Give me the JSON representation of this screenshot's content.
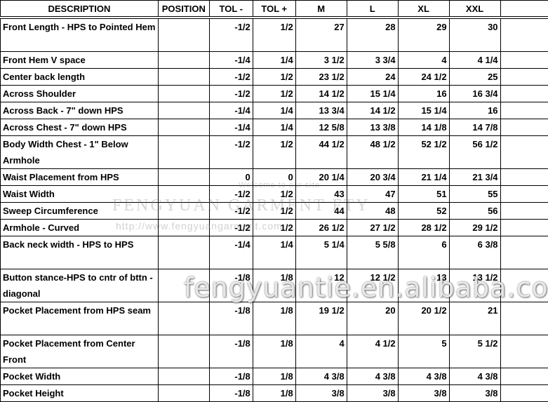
{
  "headers": [
    "DESCRIPTION",
    "POSITION",
    "TOL -",
    "TOL +",
    "M",
    "L",
    "XL",
    "XXL",
    ""
  ],
  "rows": [
    {
      "desc": "Front Length - HPS to Pointed Hem",
      "pos": "",
      "tol_minus": "-1/2",
      "tol_plus": "1/2",
      "m": "27",
      "l": "28",
      "xl": "29",
      "xxl": "30",
      "tall": true
    },
    {
      "desc": "Front Hem V space",
      "pos": "",
      "tol_minus": "-1/4",
      "tol_plus": "1/4",
      "m": "3 1/2",
      "l": "3 3/4",
      "xl": "4",
      "xxl": "4 1/4",
      "tall": false
    },
    {
      "desc": "Center back length",
      "pos": "",
      "tol_minus": "-1/2",
      "tol_plus": "1/2",
      "m": "23 1/2",
      "l": "24",
      "xl": "24 1/2",
      "xxl": "25",
      "tall": false
    },
    {
      "desc": "Across Shoulder",
      "pos": "",
      "tol_minus": "-1/2",
      "tol_plus": "1/2",
      "m": "14 1/2",
      "l": "15 1/4",
      "xl": "16",
      "xxl": "16 3/4",
      "tall": false
    },
    {
      "desc": "Across Back - 7\" down HPS",
      "pos": "",
      "tol_minus": "-1/4",
      "tol_plus": "1/4",
      "m": "13 3/4",
      "l": "14 1/2",
      "xl": "15 1/4",
      "xxl": "16",
      "tall": false
    },
    {
      "desc": "Across Chest - 7\" down HPS",
      "pos": "",
      "tol_minus": "-1/4",
      "tol_plus": "1/4",
      "m": "12 5/8",
      "l": "13 3/8",
      "xl": "14 1/8",
      "xxl": "14 7/8",
      "tall": false
    },
    {
      "desc": "Body Width Chest - 1\" Below Armhole",
      "pos": "",
      "tol_minus": "-1/2",
      "tol_plus": "1/2",
      "m": "44 1/2",
      "l": "48 1/2",
      "xl": "52 1/2",
      "xxl": "56 1/2",
      "tall": true
    },
    {
      "desc": "Waist Placement from HPS",
      "pos": "",
      "tol_minus": "0",
      "tol_plus": "0",
      "m": "20 1/4",
      "l": "20 3/4",
      "xl": "21 1/4",
      "xxl": "21 3/4",
      "tall": false
    },
    {
      "desc": "Waist Width",
      "pos": "",
      "tol_minus": "-1/2",
      "tol_plus": "1/2",
      "m": "43",
      "l": "47",
      "xl": "51",
      "xxl": "55",
      "tall": false
    },
    {
      "desc": "Sweep Circumference",
      "pos": "",
      "tol_minus": "-1/2",
      "tol_plus": "1/2",
      "m": "44",
      "l": "48",
      "xl": "52",
      "xxl": "56",
      "tall": false
    },
    {
      "desc": "Armhole - Curved",
      "pos": "",
      "tol_minus": "-1/2",
      "tol_plus": "1/2",
      "m": "26 1/2",
      "l": "27 1/2",
      "xl": "28 1/2",
      "xxl": "29 1/2",
      "tall": false
    },
    {
      "desc": "Back neck width - HPS to HPS",
      "pos": "",
      "tol_minus": "-1/4",
      "tol_plus": "1/4",
      "m": "5 1/4",
      "l": "5 5/8",
      "xl": "6",
      "xxl": "6 3/8",
      "tall": true
    },
    {
      "desc": "Button stance-HPS to cntr of bttn - diagonal",
      "pos": "",
      "tol_minus": "-1/8",
      "tol_plus": "1/8",
      "m": "12",
      "l": "12 1/2",
      "xl": "13",
      "xxl": "13 1/2",
      "tall": true
    },
    {
      "desc": "Pocket Placement from HPS seam",
      "pos": "",
      "tol_minus": "-1/8",
      "tol_plus": "1/8",
      "m": "19 1/2",
      "l": "20",
      "xl": "20 1/2",
      "xxl": "21",
      "tall": true
    },
    {
      "desc": "Pocket Placement from Center Front",
      "pos": "",
      "tol_minus": "-1/8",
      "tol_plus": "1/8",
      "m": "4",
      "l": "4 1/2",
      "xl": "5",
      "xxl": "5 1/2",
      "tall": true
    },
    {
      "desc": "Pocket Width",
      "pos": "",
      "tol_minus": "-1/8",
      "tol_plus": "1/8",
      "m": "4 3/8",
      "l": "4 3/8",
      "xl": "4 3/8",
      "xxl": "4 3/8",
      "tall": false
    },
    {
      "desc": "Pocket Height",
      "pos": "",
      "tol_minus": "-1/8",
      "tol_plus": "1/8",
      "m": "3/8",
      "l": "3/8",
      "xl": "3/8",
      "xxl": "3/8",
      "tall": false
    }
  ],
  "watermark": {
    "welcome": "Welcome to our site",
    "brand": "FENGYUAN GARMENT FTY",
    "url": "http://www.fengyuangarment.com",
    "site": "fengyuantie.en.alibaba.com"
  }
}
